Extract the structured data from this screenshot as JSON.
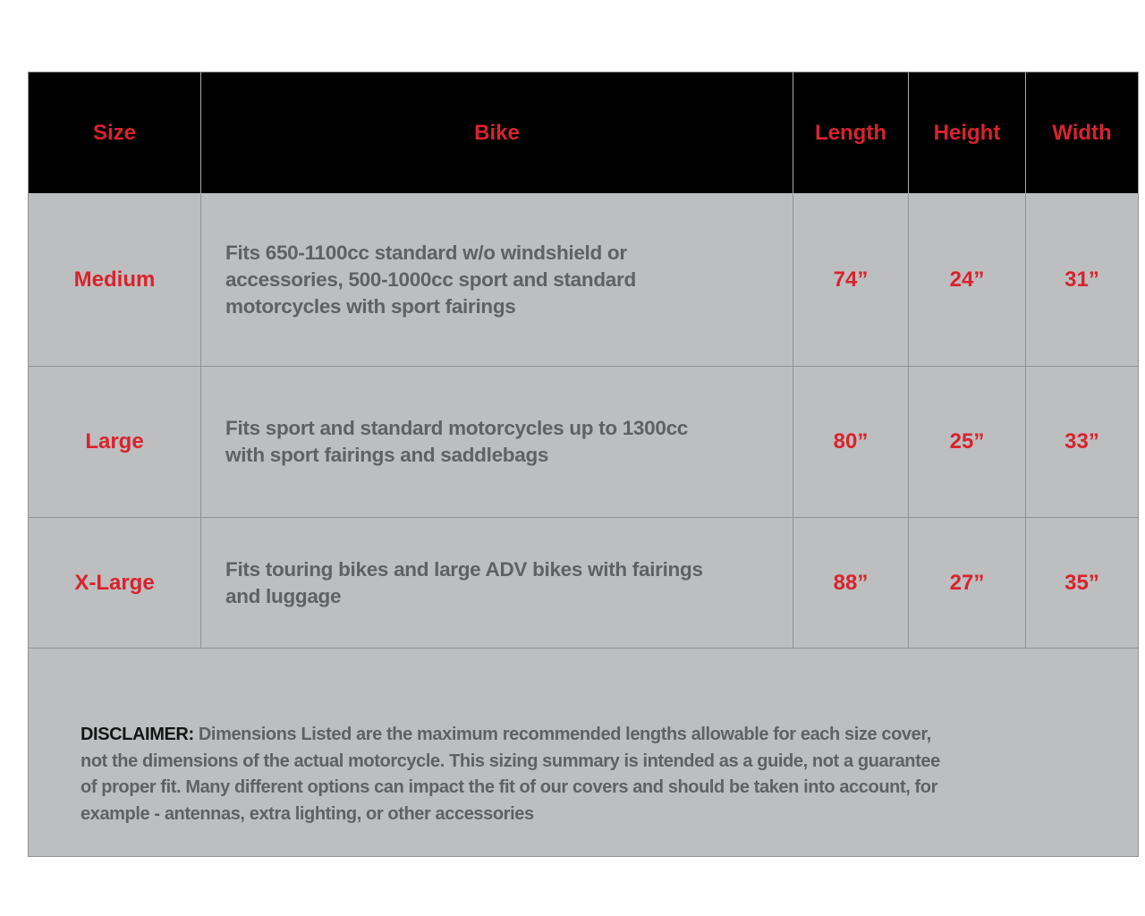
{
  "colors": {
    "header_bg": "#000000",
    "accent_red": "#d8232e",
    "body_bg": "#bdbebf",
    "body_text": "#5f6165",
    "disclaimer_label": "#141414",
    "border_gray": "#8f9193"
  },
  "table": {
    "headers": [
      "Size",
      "Bike",
      "Length",
      "Height",
      "Width"
    ],
    "rows": [
      {
        "size": "Medium",
        "bike": "Fits 650-1100cc standard w/o windshield or\naccessories, 500-1000cc sport and standard\nmotorcycles with sport fairings",
        "length": "74”",
        "height": "24”",
        "width": "31”"
      },
      {
        "size": "Large",
        "bike": "Fits sport and standard motorcycles up to 1300cc\nwith sport fairings and saddlebags",
        "length": "80”",
        "height": "25”",
        "width": "33”"
      },
      {
        "size": "X-Large",
        "bike": "Fits touring bikes and large ADV bikes with fairings\nand luggage",
        "length": "88”",
        "height": "27”",
        "width": "35”"
      }
    ]
  },
  "disclaimer": {
    "label": "DISCLAIMER:",
    "text": " Dimensions Listed are the maximum recommended lengths allowable for each size cover,\nnot the dimensions of the actual motorcycle. This sizing summary is intended as a guide, not a guarantee\nof proper fit. Many different options can impact the fit of our covers and should be taken into account, for\nexample - antennas, extra lighting, or other accessories"
  }
}
